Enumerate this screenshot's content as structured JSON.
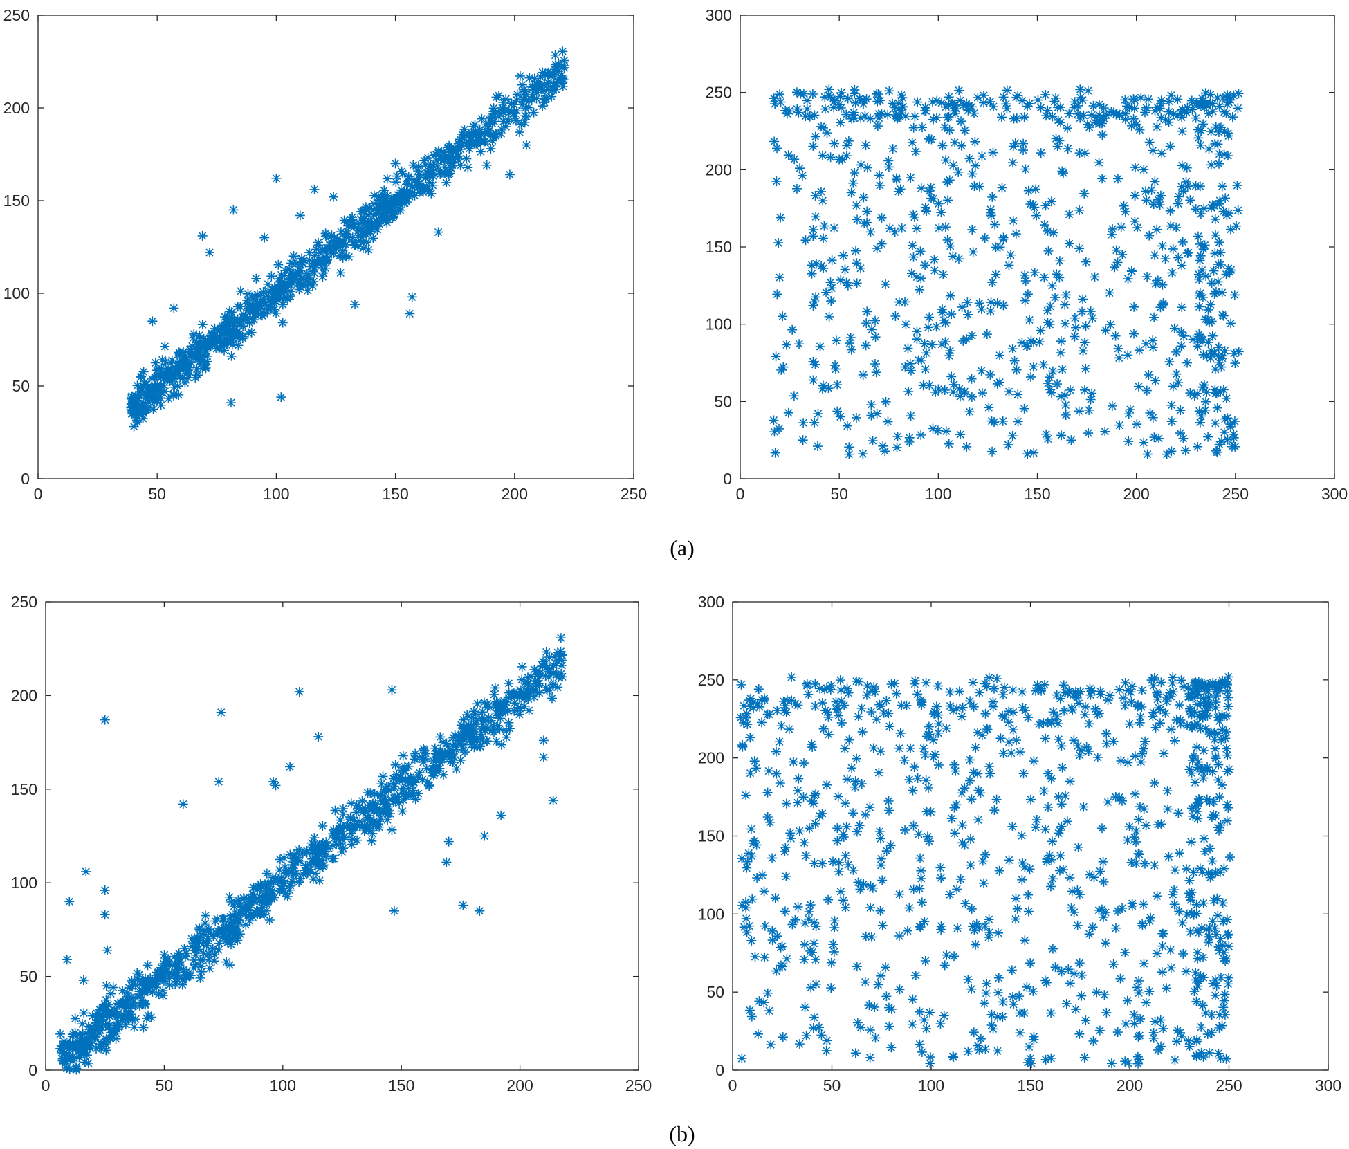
{
  "marker_color": "#0072BD",
  "axis_color": "#262626",
  "captions": [
    "(a)",
    "(b)"
  ],
  "chart_data": [
    {
      "type": "scatter",
      "marker": "asterisk",
      "panel": "(a)",
      "position": "left",
      "xlim": [
        0,
        250
      ],
      "ylim": [
        0,
        250
      ],
      "xticks": [
        0,
        50,
        100,
        150,
        200,
        250
      ],
      "yticks": [
        0,
        50,
        100,
        150,
        200,
        250
      ],
      "trend": {
        "kind": "linear",
        "x_range": [
          39,
          221
        ],
        "slope": 1.0,
        "intercept": 0,
        "scatter_sd": 5.5,
        "n": 900
      },
      "outliers": [
        [
          100,
          162
        ],
        [
          82,
          145
        ],
        [
          69,
          131
        ],
        [
          72,
          122
        ],
        [
          157,
          98
        ],
        [
          156,
          89
        ],
        [
          133,
          94
        ],
        [
          102,
          44
        ],
        [
          81,
          41
        ],
        [
          48,
          85
        ],
        [
          57,
          92
        ],
        [
          181,
          178
        ],
        [
          190,
          178
        ],
        [
          205,
          180
        ],
        [
          198,
          164
        ],
        [
          116,
          156
        ],
        [
          124,
          152
        ],
        [
          143,
          148
        ],
        [
          168,
          133
        ],
        [
          95,
          130
        ],
        [
          110,
          142
        ],
        [
          150,
          170
        ]
      ]
    },
    {
      "type": "scatter",
      "marker": "asterisk",
      "panel": "(a)",
      "position": "right",
      "xlim": [
        0,
        300
      ],
      "ylim": [
        0,
        300
      ],
      "xticks": [
        0,
        50,
        100,
        150,
        200,
        250,
        300
      ],
      "yticks": [
        0,
        50,
        100,
        150,
        200,
        250,
        300
      ],
      "random_cloud": {
        "x_range": [
          16,
          252
        ],
        "y_range": [
          15,
          252
        ],
        "n": 900,
        "upper_band": [
          232,
          250
        ]
      }
    },
    {
      "type": "scatter",
      "marker": "asterisk",
      "panel": "(b)",
      "position": "left",
      "xlim": [
        0,
        250
      ],
      "ylim": [
        0,
        250
      ],
      "xticks": [
        0,
        50,
        100,
        150,
        200,
        250
      ],
      "yticks": [
        0,
        50,
        100,
        150,
        200,
        250
      ],
      "trend": {
        "kind": "linear",
        "x_range": [
          6,
          218
        ],
        "slope": 1.0,
        "intercept": 0,
        "scatter_sd": 6.5,
        "n": 1000
      },
      "outliers": [
        [
          25,
          187
        ],
        [
          74,
          191
        ],
        [
          107,
          202
        ],
        [
          146,
          203
        ],
        [
          115,
          178
        ],
        [
          96,
          154
        ],
        [
          58,
          142
        ],
        [
          73,
          154
        ],
        [
          17,
          106
        ],
        [
          10,
          90
        ],
        [
          9,
          59
        ],
        [
          25,
          96
        ],
        [
          25,
          83
        ],
        [
          26,
          64
        ],
        [
          16,
          48
        ],
        [
          147,
          85
        ],
        [
          176,
          88
        ],
        [
          183,
          85
        ],
        [
          170,
          122
        ],
        [
          169,
          111
        ],
        [
          185,
          125
        ],
        [
          192,
          136
        ],
        [
          210,
          176
        ],
        [
          210,
          167
        ],
        [
          214,
          144
        ],
        [
          103,
          162
        ],
        [
          97,
          152
        ]
      ]
    },
    {
      "type": "scatter",
      "marker": "asterisk",
      "panel": "(b)",
      "position": "right",
      "xlim": [
        0,
        300
      ],
      "ylim": [
        0,
        300
      ],
      "xticks": [
        0,
        50,
        100,
        150,
        200,
        250,
        300
      ],
      "yticks": [
        0,
        50,
        100,
        150,
        200,
        250,
        300
      ],
      "random_cloud": {
        "x_range": [
          4,
          251
        ],
        "y_range": [
          4,
          252
        ],
        "n": 1000,
        "upper_band": [
          225,
          250
        ]
      }
    }
  ]
}
